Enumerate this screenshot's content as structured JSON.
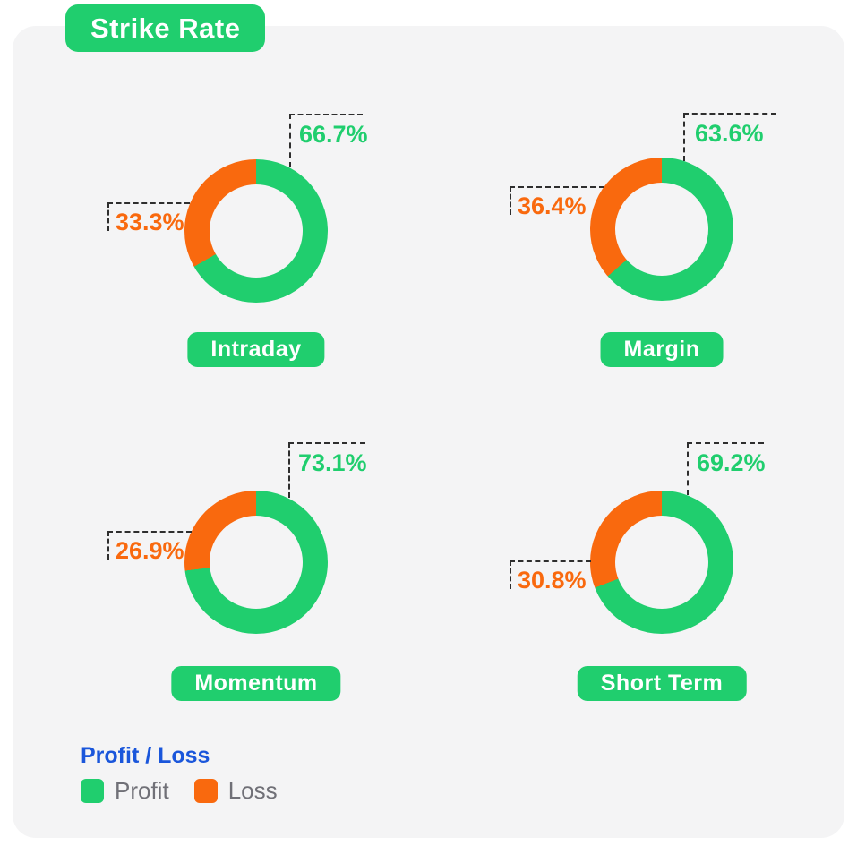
{
  "title": "Strike Rate",
  "colors": {
    "profit": "#20CE6E",
    "loss": "#F9690E",
    "legend_title": "#1A56DB",
    "legend_text": "#707077",
    "card_background": "#F4F4F5",
    "callout_line": "#2E2E2E",
    "badge_text": "#FFFFFF"
  },
  "legend": {
    "title": "Profit / Loss",
    "items": [
      {
        "label": "Profit",
        "color": "#20CE6E"
      },
      {
        "label": "Loss",
        "color": "#F9690E"
      }
    ],
    "position": "bottom-left"
  },
  "chart_data": [
    {
      "type": "pie",
      "title": "Intraday",
      "donut": true,
      "start_angle_deg": 0,
      "slices": [
        {
          "label": "Profit",
          "value": 66.7,
          "display": "66.7%",
          "color": "#20CE6E"
        },
        {
          "label": "Loss",
          "value": 33.3,
          "display": "33.3%",
          "color": "#F9690E"
        }
      ]
    },
    {
      "type": "pie",
      "title": "Margin",
      "donut": true,
      "start_angle_deg": 0,
      "slices": [
        {
          "label": "Profit",
          "value": 63.6,
          "display": "63.6%",
          "color": "#20CE6E"
        },
        {
          "label": "Loss",
          "value": 36.4,
          "display": "36.4%",
          "color": "#F9690E"
        }
      ]
    },
    {
      "type": "pie",
      "title": "Momentum",
      "donut": true,
      "start_angle_deg": 0,
      "slices": [
        {
          "label": "Profit",
          "value": 73.1,
          "display": "73.1%",
          "color": "#20CE6E"
        },
        {
          "label": "Loss",
          "value": 26.9,
          "display": "26.9%",
          "color": "#F9690E"
        }
      ]
    },
    {
      "type": "pie",
      "title": "Short Term",
      "donut": true,
      "start_angle_deg": 0,
      "slices": [
        {
          "label": "Profit",
          "value": 69.2,
          "display": "69.2%",
          "color": "#20CE6E"
        },
        {
          "label": "Loss",
          "value": 30.8,
          "display": "30.8%",
          "color": "#F9690E"
        }
      ]
    }
  ]
}
